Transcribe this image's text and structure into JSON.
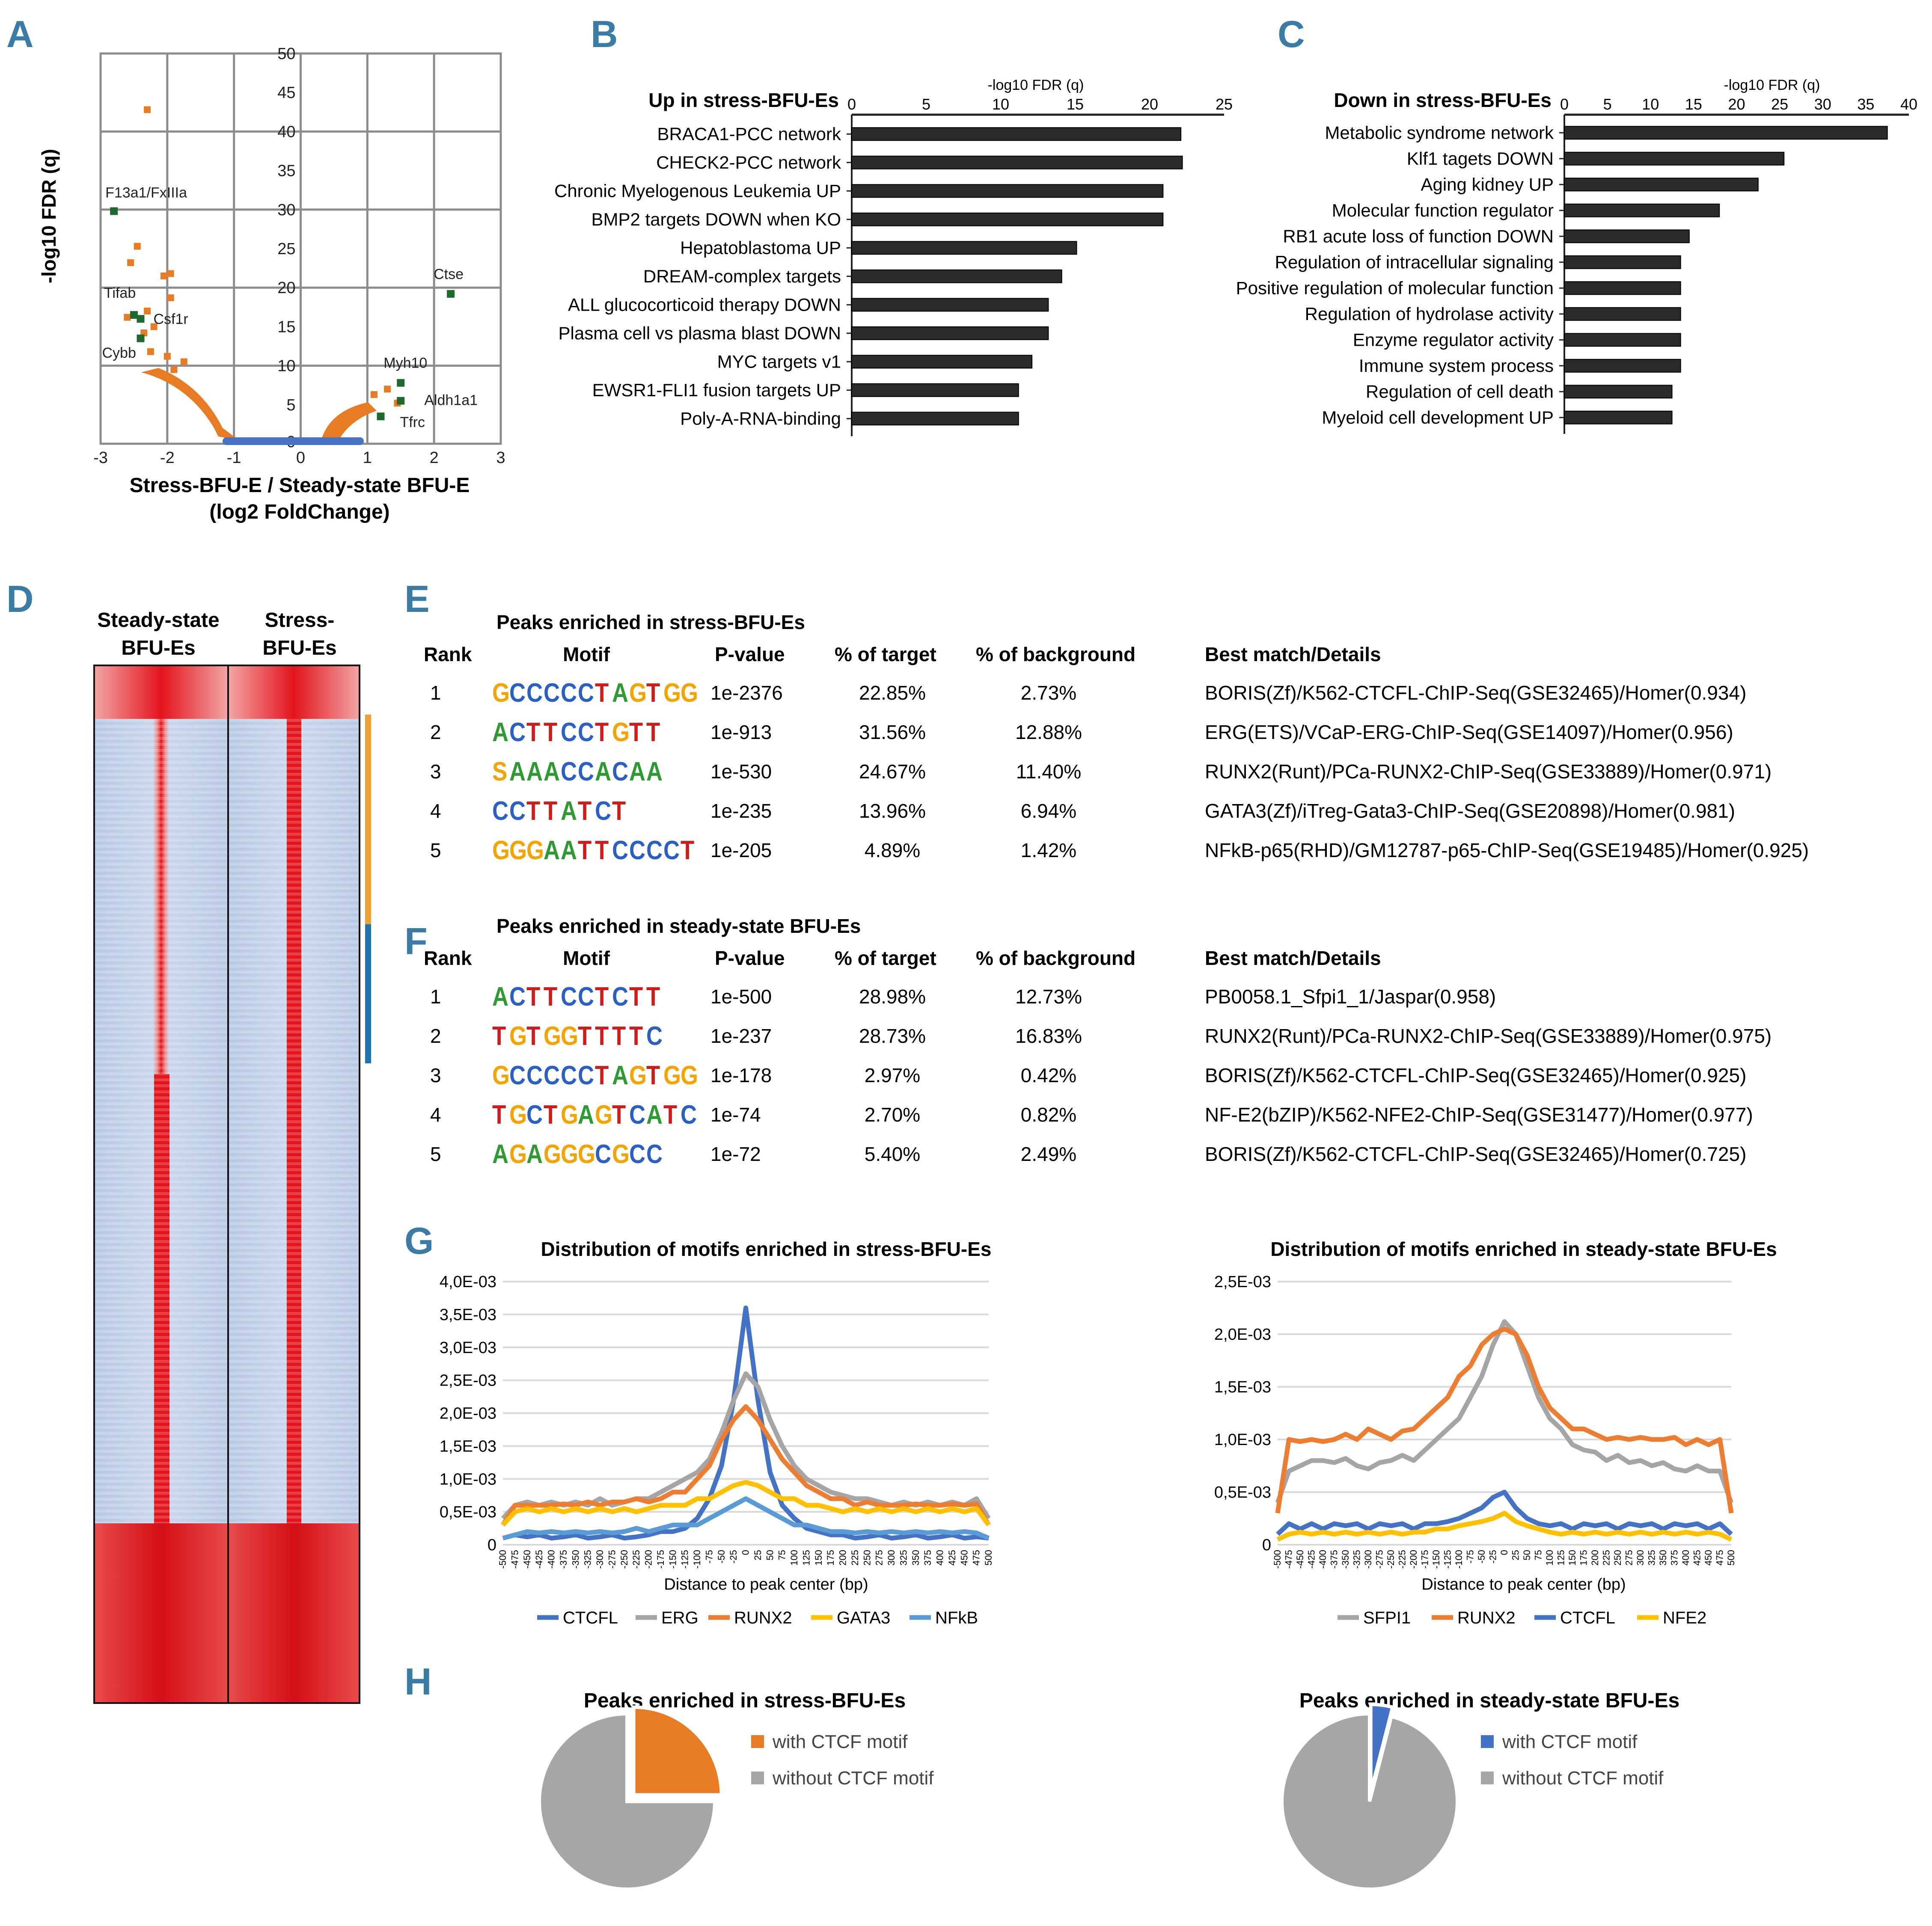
{
  "panel_letters": [
    "A",
    "B",
    "C",
    "D",
    "E",
    "F",
    "G",
    "H"
  ],
  "colors": {
    "letter": "#3a7ca5",
    "orange": "#e87c25",
    "green": "#1e6b2f",
    "blue_pts": "#4a72c4",
    "bar": "#2b2b2b",
    "grid": "#8c8c8c",
    "ctcfl": "#4472c4",
    "erg": "#a5a5a5",
    "runx2": "#ed7d31",
    "gata3": "#ffc000",
    "nfkb": "#5b9bd5",
    "heat_red": "#e3141c",
    "heat_blue": "#a8bedf",
    "bar_orange": "#f0a030",
    "bar_blue": "#1f73b4",
    "pie_gray": "#a6a6a6"
  },
  "chart_data": [
    {
      "panel": "A",
      "type": "scatter",
      "xlabel": "Stress-BFU-E / Steady-state BFU-E",
      "xlabel2": "(log2 FoldChange)",
      "ylabel": "-log10 FDR (q)",
      "xlim": [
        -3,
        3
      ],
      "ylim": [
        0,
        50
      ],
      "xticks": [
        "-3",
        "-2",
        "-1",
        "0",
        "1",
        "2",
        "3"
      ],
      "yticks": [
        "0",
        "5",
        "10",
        "15",
        "20",
        "25",
        "30",
        "35",
        "40",
        "45",
        "50"
      ],
      "labeled_points": [
        {
          "label": "F13a1/FxIIIa",
          "x": -2.8,
          "y": 29.8
        },
        {
          "label": "Tifab",
          "x": -2.5,
          "y": 16.5
        },
        {
          "label": "Csf1r",
          "x": -2.4,
          "y": 16.0
        },
        {
          "label": "Cybb",
          "x": -2.4,
          "y": 13.5
        },
        {
          "label": "Ctse",
          "x": 2.25,
          "y": 19.2
        },
        {
          "label": "Myh10",
          "x": 1.5,
          "y": 7.8
        },
        {
          "label": "Aldh1a1",
          "x": 1.5,
          "y": 5.5
        },
        {
          "label": "Tfrc",
          "x": 1.2,
          "y": 3.5
        }
      ],
      "orange_points": [
        {
          "x": -2.3,
          "y": 42.8
        },
        {
          "x": -2.55,
          "y": 23.2
        },
        {
          "x": -2.45,
          "y": 25.3
        },
        {
          "x": -2.05,
          "y": 21.5
        },
        {
          "x": -1.95,
          "y": 21.8
        },
        {
          "x": -2.3,
          "y": 17.0
        },
        {
          "x": -2.2,
          "y": 15.0
        },
        {
          "x": -1.95,
          "y": 18.7
        },
        {
          "x": -2.6,
          "y": 16.2
        },
        {
          "x": -2.35,
          "y": 14.2
        },
        {
          "x": -2.0,
          "y": 11.2
        },
        {
          "x": -2.25,
          "y": 11.8
        },
        {
          "x": -1.9,
          "y": 9.5
        },
        {
          "x": -1.75,
          "y": 10.5
        },
        {
          "x": 1.3,
          "y": 7.0
        },
        {
          "x": 1.1,
          "y": 6.3
        },
        {
          "x": 1.45,
          "y": 5.2
        }
      ]
    },
    {
      "panel": "B",
      "type": "bar",
      "title": "Up in stress-BFU-Es",
      "xlabel": "-log10 FDR (q)",
      "xlim": [
        0,
        25
      ],
      "xticks": [
        "0",
        "5",
        "10",
        "15",
        "20",
        "25"
      ],
      "categories": [
        "BRACA1-PCC network",
        "CHECK2-PCC network",
        "Chronic Myelogenous Leukemia UP",
        "BMP2 targets DOWN when KO",
        "Hepatoblastoma UP",
        "DREAM-complex targets",
        "ALL glucocorticoid therapy DOWN",
        "Plasma cell vs plasma blast DOWN",
        "MYC targets v1",
        "EWSR1-FLI1 fusion targets UP",
        "Poly-A-RNA-binding"
      ],
      "values": [
        22.1,
        22.2,
        20.9,
        20.9,
        15.1,
        14.1,
        13.2,
        13.2,
        12.1,
        11.2,
        11.2
      ]
    },
    {
      "panel": "C",
      "type": "bar",
      "title": "Down in stress-BFU-Es",
      "xlabel": "-log10 FDR (q)",
      "xlim": [
        0,
        40
      ],
      "xticks": [
        "0",
        "5",
        "10",
        "15",
        "20",
        "25",
        "30",
        "35",
        "40"
      ],
      "categories": [
        "Metabolic syndrome network",
        "Klf1 tagets DOWN",
        "Aging kidney UP",
        "Molecular function regulator",
        "RB1 acute loss of function DOWN",
        "Regulation of intracellular signaling",
        "Positive regulation of molecular function",
        "Regulation of hydrolase activity",
        "Enzyme regulator activity",
        "Immune system process",
        "Regulation of cell death",
        "Myeloid cell development UP"
      ],
      "values": [
        37.5,
        25.5,
        22.5,
        18.0,
        14.5,
        13.5,
        13.5,
        13.5,
        13.5,
        13.5,
        12.5,
        12.5
      ]
    },
    {
      "panel": "G1",
      "type": "line",
      "title": "Distribution of motifs enriched in stress-BFU-Es",
      "xlabel": "Distance to peak center (bp)",
      "ylim": [
        0,
        0.004
      ],
      "yticks": [
        "0",
        "0,5E-03",
        "1,0E-03",
        "1,5E-03",
        "2,0E-03",
        "2,5E-03",
        "3,0E-03",
        "3,5E-03",
        "4,0E-03"
      ],
      "x": [
        -500,
        -475,
        -450,
        -425,
        -400,
        -375,
        -350,
        -325,
        -300,
        -275,
        -250,
        -225,
        -200,
        -175,
        -150,
        -125,
        -100,
        -75,
        -50,
        -25,
        0,
        25,
        50,
        75,
        100,
        125,
        150,
        175,
        200,
        225,
        250,
        275,
        300,
        325,
        350,
        375,
        400,
        425,
        450,
        475,
        500
      ],
      "series": [
        {
          "name": "CTCFL",
          "values": [
            0.0001,
            0.00015,
            0.00012,
            0.00015,
            0.0001,
            0.00012,
            0.00015,
            0.0001,
            0.00012,
            0.00015,
            0.0001,
            0.00012,
            0.00015,
            0.0002,
            0.0002,
            0.00025,
            0.0004,
            0.0007,
            0.0012,
            0.0022,
            0.0036,
            0.0022,
            0.0011,
            0.0006,
            0.0004,
            0.00025,
            0.0002,
            0.00015,
            0.00015,
            0.0001,
            0.00012,
            0.00015,
            0.0001,
            0.00012,
            0.00015,
            0.0001,
            0.00012,
            0.00015,
            0.0001,
            0.00012,
            0.0001
          ]
        },
        {
          "name": "ERG",
          "values": [
            0.0004,
            0.0006,
            0.00065,
            0.0006,
            0.00065,
            0.0006,
            0.00065,
            0.0006,
            0.0007,
            0.0006,
            0.00065,
            0.0007,
            0.0007,
            0.0008,
            0.0009,
            0.001,
            0.0011,
            0.0013,
            0.0017,
            0.0022,
            0.0026,
            0.0024,
            0.0019,
            0.0015,
            0.0012,
            0.001,
            0.0009,
            0.0008,
            0.00075,
            0.0007,
            0.0007,
            0.00065,
            0.0006,
            0.00065,
            0.0006,
            0.00065,
            0.0006,
            0.00065,
            0.0006,
            0.0007,
            0.0004
          ]
        },
        {
          "name": "RUNX2",
          "values": [
            0.0003,
            0.0006,
            0.0006,
            0.0006,
            0.0006,
            0.00062,
            0.0006,
            0.00065,
            0.0006,
            0.00065,
            0.00065,
            0.0007,
            0.00065,
            0.0007,
            0.0008,
            0.0008,
            0.001,
            0.0012,
            0.0016,
            0.0019,
            0.0021,
            0.0019,
            0.0016,
            0.0013,
            0.0011,
            0.0009,
            0.0008,
            0.0007,
            0.0007,
            0.0006,
            0.00065,
            0.0006,
            0.0006,
            0.0006,
            0.00062,
            0.0006,
            0.0006,
            0.00062,
            0.0006,
            0.00062,
            0.0003
          ]
        },
        {
          "name": "GATA3",
          "values": [
            0.0003,
            0.0005,
            0.00055,
            0.0005,
            0.00055,
            0.0005,
            0.00055,
            0.0005,
            0.00055,
            0.0005,
            0.00055,
            0.0005,
            0.00055,
            0.0006,
            0.0006,
            0.0006,
            0.0007,
            0.0007,
            0.0008,
            0.0009,
            0.00095,
            0.0009,
            0.0008,
            0.0007,
            0.0007,
            0.0006,
            0.0006,
            0.00055,
            0.0005,
            0.00055,
            0.0005,
            0.00055,
            0.0005,
            0.00055,
            0.0005,
            0.00055,
            0.0005,
            0.00055,
            0.0005,
            0.00055,
            0.0003
          ]
        },
        {
          "name": "NFkB",
          "values": [
            0.0001,
            0.00015,
            0.0002,
            0.00018,
            0.0002,
            0.00018,
            0.0002,
            0.00018,
            0.0002,
            0.00018,
            0.0002,
            0.00025,
            0.0002,
            0.00025,
            0.0003,
            0.0003,
            0.0003,
            0.0004,
            0.0005,
            0.0006,
            0.0007,
            0.0006,
            0.0005,
            0.0004,
            0.0003,
            0.0003,
            0.00025,
            0.0002,
            0.0002,
            0.00018,
            0.0002,
            0.00018,
            0.0002,
            0.00018,
            0.0002,
            0.00018,
            0.0002,
            0.00018,
            0.0002,
            0.00018,
            0.0001
          ]
        }
      ]
    },
    {
      "panel": "G2",
      "type": "line",
      "title": "Distribution of motifs enriched in steady-state BFU-Es",
      "xlabel": "Distance to peak center (bp)",
      "ylim": [
        0,
        0.0025
      ],
      "yticks": [
        "0",
        "0,5E-03",
        "1,0E-03",
        "1,5E-03",
        "2,0E-03",
        "2,5E-03"
      ],
      "x": [
        -500,
        -475,
        -450,
        -425,
        -400,
        -375,
        -350,
        -325,
        -300,
        -275,
        -250,
        -225,
        -200,
        -175,
        -150,
        -125,
        -100,
        -75,
        -50,
        -25,
        0,
        25,
        50,
        75,
        100,
        125,
        150,
        175,
        200,
        225,
        250,
        275,
        300,
        325,
        350,
        375,
        400,
        425,
        450,
        475,
        500
      ],
      "series": [
        {
          "name": "SFPI1",
          "values": [
            0.0004,
            0.0007,
            0.00075,
            0.0008,
            0.0008,
            0.00078,
            0.00082,
            0.00075,
            0.00072,
            0.00078,
            0.0008,
            0.00085,
            0.0008,
            0.0009,
            0.001,
            0.0011,
            0.0012,
            0.0014,
            0.0016,
            0.0019,
            0.00212,
            0.002,
            0.0017,
            0.0014,
            0.0012,
            0.0011,
            0.00095,
            0.0009,
            0.00088,
            0.0008,
            0.00085,
            0.00078,
            0.0008,
            0.00075,
            0.00078,
            0.00072,
            0.0007,
            0.00075,
            0.0007,
            0.0007,
            0.0004
          ]
        },
        {
          "name": "RUNX2",
          "values": [
            0.0003,
            0.001,
            0.00098,
            0.001,
            0.00098,
            0.001,
            0.00105,
            0.001,
            0.0011,
            0.00105,
            0.001,
            0.00108,
            0.0011,
            0.0012,
            0.0013,
            0.0014,
            0.0016,
            0.0017,
            0.0019,
            0.002,
            0.00205,
            0.002,
            0.0018,
            0.0015,
            0.0013,
            0.0012,
            0.0011,
            0.0011,
            0.00105,
            0.001,
            0.00102,
            0.001,
            0.00102,
            0.001,
            0.001,
            0.00102,
            0.00095,
            0.001,
            0.00095,
            0.001,
            0.0003
          ]
        },
        {
          "name": "CTCFL",
          "values": [
            0.0001,
            0.0002,
            0.00015,
            0.0002,
            0.00015,
            0.0002,
            0.00018,
            0.0002,
            0.00015,
            0.0002,
            0.00018,
            0.0002,
            0.00015,
            0.0002,
            0.0002,
            0.00022,
            0.00025,
            0.0003,
            0.00035,
            0.00045,
            0.0005,
            0.00035,
            0.00025,
            0.0002,
            0.00018,
            0.0002,
            0.00015,
            0.0002,
            0.00018,
            0.0002,
            0.00015,
            0.0002,
            0.00018,
            0.0002,
            0.00015,
            0.0002,
            0.00018,
            0.0002,
            0.00015,
            0.0002,
            0.0001
          ]
        },
        {
          "name": "NFE2",
          "values": [
            5e-05,
            0.0001,
            0.00012,
            0.0001,
            0.00012,
            0.0001,
            0.00012,
            0.0001,
            0.00012,
            0.0001,
            0.00012,
            0.0001,
            0.00012,
            0.00012,
            0.00015,
            0.00015,
            0.00018,
            0.0002,
            0.00022,
            0.00025,
            0.0003,
            0.00022,
            0.00018,
            0.00015,
            0.00012,
            0.0001,
            0.00012,
            0.0001,
            0.00012,
            0.0001,
            0.00012,
            0.0001,
            0.00012,
            0.0001,
            0.00012,
            0.0001,
            0.00012,
            0.0001,
            0.00012,
            0.0001,
            5e-05
          ]
        }
      ]
    },
    {
      "panel": "H1",
      "type": "pie",
      "title": "Peaks enriched in stress-BFU-Es",
      "labels": [
        "with CTCF motif",
        "without CTCF motif"
      ],
      "values": [
        25,
        75
      ]
    },
    {
      "panel": "H2",
      "type": "pie",
      "title": "Peaks enriched in steady-state BFU-Es",
      "labels": [
        "with CTCF motif",
        "without CTCF motif"
      ],
      "values": [
        4,
        96
      ]
    }
  ],
  "heatmap": {
    "col1": "Steady-state",
    "col1b": "BFU-Es",
    "col2": "Stress-",
    "col2b": "BFU-Es"
  },
  "tableE": {
    "title": "Peaks enriched in stress-BFU-Es",
    "headers": [
      "Rank",
      "Motif",
      "P-value",
      "% of target",
      "% of background",
      "Best match/Details"
    ],
    "rows": [
      {
        "rank": "1",
        "motif": "GCCCCCTAGTGG",
        "p": "1e-2376",
        "target": "22.85%",
        "bg": "2.73%",
        "match": "BORIS(Zf)/K562-CTCFL-ChIP-Seq(GSE32465)/Homer(0.934)"
      },
      {
        "rank": "2",
        "motif": "ACTTCCTGTT",
        "p": "1e-913",
        "target": "31.56%",
        "bg": "12.88%",
        "match": "ERG(ETS)/VCaP-ERG-ChIP-Seq(GSE14097)/Homer(0.956)"
      },
      {
        "rank": "3",
        "motif": "SAAACCACAA",
        "p": "1e-530",
        "target": "24.67%",
        "bg": "11.40%",
        "match": "RUNX2(Runt)/PCa-RUNX2-ChIP-Seq(GSE33889)/Homer(0.971)"
      },
      {
        "rank": "4",
        "motif": "CCTTATCT",
        "p": "1e-235",
        "target": "13.96%",
        "bg": "6.94%",
        "match": "GATA3(Zf)/iTreg-Gata3-ChIP-Seq(GSE20898)/Homer(0.981)"
      },
      {
        "rank": "5",
        "motif": "GGGAATTCCCCT",
        "p": "1e-205",
        "target": "4.89%",
        "bg": "1.42%",
        "match": "NFkB-p65(RHD)/GM12787-p65-ChIP-Seq(GSE19485)/Homer(0.925)"
      }
    ]
  },
  "tableF": {
    "title": "Peaks enriched in steady-state BFU-Es",
    "headers": [
      "Rank",
      "Motif",
      "P-value",
      "% of target",
      "% of background",
      "Best match/Details"
    ],
    "rows": [
      {
        "rank": "1",
        "motif": "ACTTCCTCTT",
        "p": "1e-500",
        "target": "28.98%",
        "bg": "12.73%",
        "match": "PB0058.1_Sfpi1_1/Jaspar(0.958)"
      },
      {
        "rank": "2",
        "motif": "TGTGGTTTTC",
        "p": "1e-237",
        "target": "28.73%",
        "bg": "16.83%",
        "match": "RUNX2(Runt)/PCa-RUNX2-ChIP-Seq(GSE33889)/Homer(0.975)"
      },
      {
        "rank": "3",
        "motif": "GCCCCCTAGTGG",
        "p": "1e-178",
        "target": "2.97%",
        "bg": "0.42%",
        "match": "BORIS(Zf)/K562-CTCFL-ChIP-Seq(GSE32465)/Homer(0.925)"
      },
      {
        "rank": "4",
        "motif": "TGCTGAGTCATC",
        "p": "1e-74",
        "target": "2.70%",
        "bg": "0.82%",
        "match": "NF-E2(bZIP)/K562-NFE2-ChIP-Seq(GSE31477)/Homer(0.977)"
      },
      {
        "rank": "5",
        "motif": "AGAGGGCGCC",
        "p": "1e-72",
        "target": "5.40%",
        "bg": "2.49%",
        "match": "BORIS(Zf)/K562-CTCFL-ChIP-Seq(GSE32465)/Homer(0.725)"
      }
    ]
  }
}
